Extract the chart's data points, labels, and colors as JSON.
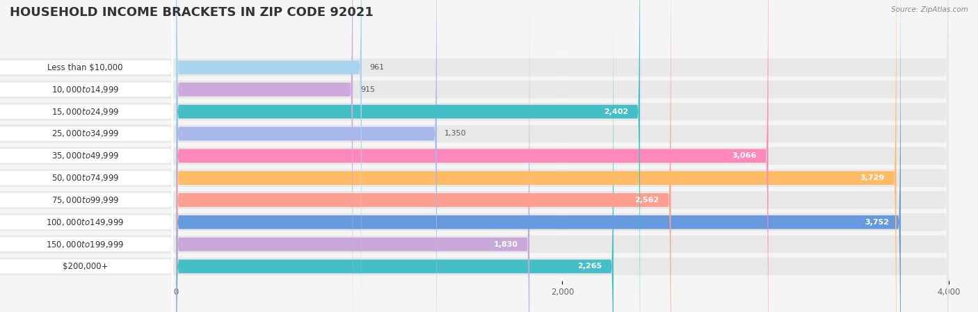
{
  "title": "HOUSEHOLD INCOME BRACKETS IN ZIP CODE 92021",
  "source": "Source: ZipAtlas.com",
  "categories": [
    "Less than $10,000",
    "$10,000 to $14,999",
    "$15,000 to $24,999",
    "$25,000 to $34,999",
    "$35,000 to $49,999",
    "$50,000 to $74,999",
    "$75,000 to $99,999",
    "$100,000 to $149,999",
    "$150,000 to $199,999",
    "$200,000+"
  ],
  "values": [
    961,
    915,
    2402,
    1350,
    3066,
    3729,
    2562,
    3752,
    1830,
    2265
  ],
  "bar_colors": [
    "#a8d4ee",
    "#ccaade",
    "#44bfc8",
    "#aab8ee",
    "#ff88bb",
    "#ffbb66",
    "#ff9f8f",
    "#6699dd",
    "#c8a8d8",
    "#44bfc8"
  ],
  "background_color": "#f5f5f5",
  "row_bg_color": "#e8e8e8",
  "white_label_bg": "#ffffff",
  "xlim_max": 4000,
  "xticks": [
    0,
    2000,
    4000
  ],
  "title_fontsize": 13,
  "label_fontsize": 8.5,
  "value_fontsize": 8,
  "white_text_threshold": 1800
}
